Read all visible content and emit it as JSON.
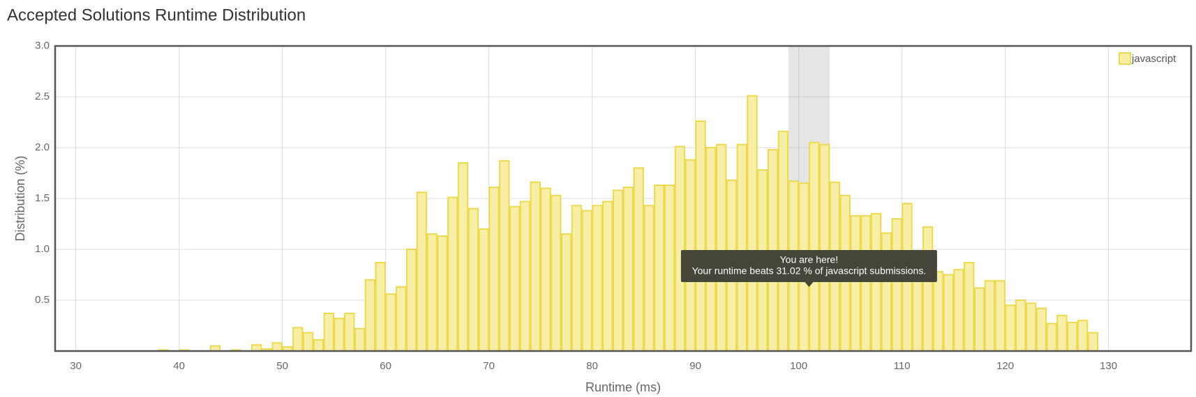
{
  "chart_data": {
    "type": "histogram",
    "title": "Accepted Solutions Runtime Distribution",
    "xlabel": "Runtime (ms)",
    "ylabel": "Distribution (%)",
    "series_name": "javascript",
    "color": "#f7efa6",
    "edge_color": "#ecd94e",
    "bins": [
      38,
      39,
      40,
      41,
      42,
      43,
      44,
      45,
      46,
      47,
      48,
      49,
      50,
      51,
      52,
      53,
      54,
      55,
      56,
      57,
      58,
      59,
      60,
      61,
      62,
      63,
      64,
      65,
      66,
      67,
      68,
      69,
      70,
      71,
      72,
      73,
      74,
      75,
      76,
      77,
      78,
      79,
      80,
      81,
      82,
      83,
      84,
      85,
      86,
      87,
      88,
      89,
      90,
      91,
      92,
      93,
      94,
      95,
      96,
      97,
      98,
      99,
      100,
      101,
      102,
      103,
      104,
      105,
      106,
      107,
      108,
      109,
      110,
      111,
      112,
      113,
      114,
      115,
      116,
      117,
      118,
      119,
      120,
      121,
      122,
      123,
      124,
      125,
      126,
      127,
      128,
      129
    ],
    "values": [
      0.01,
      0,
      0.01,
      0,
      0,
      0.05,
      0,
      0.01,
      0,
      0.06,
      0.02,
      0.08,
      0.04,
      0.23,
      0.18,
      0.11,
      0.37,
      0.32,
      0.37,
      0.22,
      0.7,
      0.87,
      0.56,
      0.63,
      1.0,
      1.56,
      1.15,
      1.13,
      1.51,
      1.85,
      1.4,
      1.2,
      1.61,
      1.87,
      1.42,
      1.47,
      1.66,
      1.6,
      1.53,
      1.15,
      1.43,
      1.38,
      1.43,
      1.47,
      1.58,
      1.61,
      1.8,
      1.43,
      1.63,
      1.63,
      2.01,
      1.88,
      2.26,
      2.0,
      2.03,
      1.68,
      2.03,
      2.51,
      1.78,
      1.98,
      2.16,
      1.67,
      1.65,
      2.05,
      2.03,
      1.66,
      1.53,
      1.33,
      1.33,
      1.35,
      1.16,
      1.3,
      1.45,
      0.98,
      1.22,
      0.78,
      0.75,
      0.8,
      0.87,
      0.62,
      0.69,
      0.69,
      0.45,
      0.5,
      0.47,
      0.42,
      0.27,
      0.35,
      0.28,
      0.3,
      0.18
    ],
    "highlight": [
      99,
      103
    ],
    "tooltip_title": "You are here!",
    "tooltip_text": "Your runtime beats 31.02 % of javascript submissions.",
    "xlim": [
      28,
      138
    ],
    "xticks": [
      30,
      40,
      50,
      60,
      70,
      80,
      90,
      100,
      110,
      120,
      130
    ],
    "ylim": [
      0,
      3
    ],
    "yticks": [
      {
        "value": 0.5,
        "label": "0.5"
      },
      {
        "value": 1,
        "label": "1.0"
      },
      {
        "value": 1.5,
        "label": "1.5"
      },
      {
        "value": 2,
        "label": "2.0"
      },
      {
        "value": 2.5,
        "label": "2.5"
      },
      {
        "value": 3,
        "label": "3.0"
      }
    ],
    "grid": true,
    "legend": "top-right"
  }
}
